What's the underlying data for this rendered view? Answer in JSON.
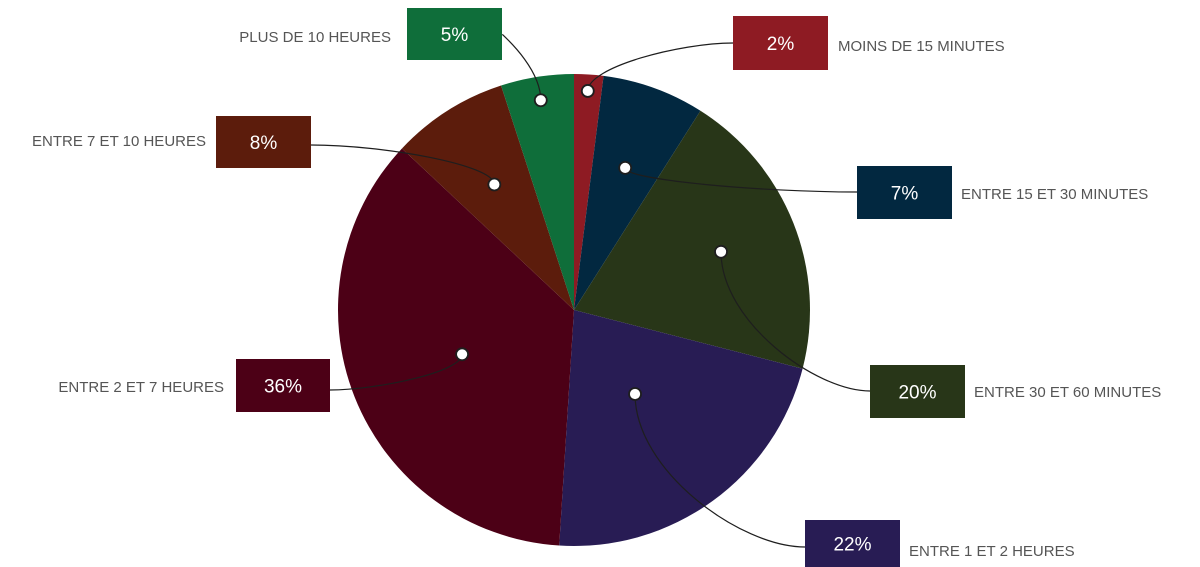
{
  "chart_data": {
    "type": "pie",
    "title": "",
    "slices": [
      {
        "label": "MOINS DE 15 MINUTES",
        "value": 2,
        "value_label": "2%",
        "color": "#8e1b23"
      },
      {
        "label": "ENTRE 15 ET 30 MINUTES",
        "value": 7,
        "value_label": "7%",
        "color": "#022840"
      },
      {
        "label": "ENTRE 30 ET 60 MINUTES",
        "value": 20,
        "value_label": "20%",
        "color": "#283618"
      },
      {
        "label": "ENTRE 1 ET 2 HEURES",
        "value": 22,
        "value_label": "22%",
        "color": "#281c54"
      },
      {
        "label": "ENTRE 2 ET 7 HEURES",
        "value": 36,
        "value_label": "36%",
        "color": "#4c0016"
      },
      {
        "label": "ENTRE 7 ET 10 HEURES",
        "value": 8,
        "value_label": "8%",
        "color": "#5c1c0c"
      },
      {
        "label": "PLUS DE 10 HEURES",
        "value": 5,
        "value_label": "5%",
        "color": "#0f6e3a"
      }
    ]
  }
}
